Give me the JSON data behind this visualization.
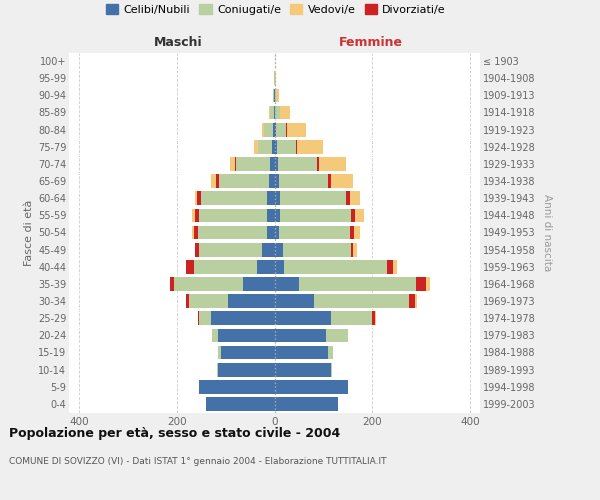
{
  "age_groups": [
    "0-4",
    "5-9",
    "10-14",
    "15-19",
    "20-24",
    "25-29",
    "30-34",
    "35-39",
    "40-44",
    "45-49",
    "50-54",
    "55-59",
    "60-64",
    "65-69",
    "70-74",
    "75-79",
    "80-84",
    "85-89",
    "90-94",
    "95-99",
    "100+"
  ],
  "birth_years": [
    "1999-2003",
    "1994-1998",
    "1989-1993",
    "1984-1988",
    "1979-1983",
    "1974-1978",
    "1969-1973",
    "1964-1968",
    "1959-1963",
    "1954-1958",
    "1949-1953",
    "1944-1948",
    "1939-1943",
    "1934-1938",
    "1929-1933",
    "1924-1928",
    "1919-1923",
    "1914-1918",
    "1909-1913",
    "1904-1908",
    "≤ 1903"
  ],
  "maschi": {
    "celibi": [
      140,
      155,
      115,
      110,
      115,
      130,
      95,
      65,
      35,
      25,
      15,
      15,
      15,
      12,
      10,
      5,
      3,
      2,
      1,
      0,
      0
    ],
    "coniugati": [
      0,
      0,
      2,
      5,
      12,
      25,
      80,
      140,
      130,
      130,
      142,
      140,
      135,
      102,
      68,
      28,
      18,
      8,
      3,
      1,
      0
    ],
    "vedovi": [
      0,
      0,
      0,
      0,
      0,
      0,
      0,
      0,
      0,
      0,
      3,
      5,
      5,
      10,
      10,
      8,
      5,
      2,
      0,
      0,
      0
    ],
    "divorziati": [
      0,
      0,
      0,
      0,
      0,
      2,
      5,
      8,
      15,
      8,
      8,
      8,
      8,
      5,
      2,
      0,
      0,
      0,
      0,
      0,
      0
    ]
  },
  "femmine": {
    "nubili": [
      130,
      150,
      115,
      110,
      105,
      115,
      80,
      50,
      20,
      18,
      10,
      12,
      12,
      10,
      8,
      5,
      3,
      2,
      1,
      0,
      0
    ],
    "coniugate": [
      0,
      0,
      3,
      10,
      45,
      85,
      195,
      240,
      210,
      138,
      145,
      145,
      135,
      100,
      78,
      38,
      20,
      10,
      3,
      1,
      0
    ],
    "vedove": [
      0,
      0,
      0,
      0,
      0,
      2,
      5,
      8,
      8,
      8,
      12,
      18,
      20,
      45,
      55,
      55,
      40,
      20,
      5,
      2,
      0
    ],
    "divorziate": [
      0,
      0,
      0,
      0,
      0,
      5,
      12,
      20,
      12,
      5,
      8,
      8,
      8,
      5,
      5,
      2,
      2,
      0,
      0,
      0,
      0
    ]
  },
  "colors": {
    "celibi": "#4472a8",
    "coniugati": "#b9cfa0",
    "vedovi": "#f5c97a",
    "divorziati": "#cc2222"
  },
  "xlim": 420,
  "title": "Popolazione per età, sesso e stato civile - 2004",
  "subtitle": "COMUNE DI SOVIZZO (VI) - Dati ISTAT 1° gennaio 2004 - Elaborazione TUTTITALIA.IT",
  "ylabel_left": "Fasce di età",
  "ylabel_right": "Anni di nascita",
  "xlabel_maschi": "Maschi",
  "xlabel_femmine": "Femmine",
  "legend_labels": [
    "Celibi/Nubili",
    "Coniugati/e",
    "Vedovi/e",
    "Divorziati/e"
  ],
  "bg_color": "#efefef",
  "plot_bg_color": "#ffffff"
}
